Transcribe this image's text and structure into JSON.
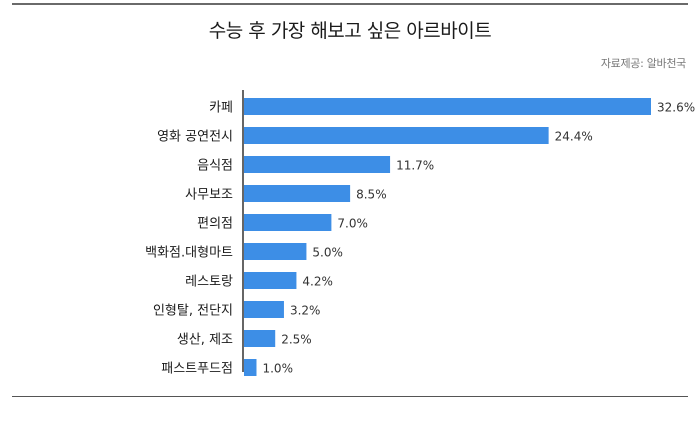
{
  "title": "수능 후 가장 해보고 싶은 아르바이트",
  "source": "자료제공: 알바천국",
  "colors": {
    "bar": "#3d8ee6",
    "axis": "#333333"
  },
  "chart_data": {
    "type": "bar",
    "orientation": "horizontal",
    "title": "수능 후 가장 해보고 싶은 아르바이트",
    "categories": [
      "카페",
      "영화 공연전시",
      "음식점",
      "사무보조",
      "편의점",
      "백화점.대형마트",
      "레스토랑",
      "인형탈, 전단지",
      "생산, 제조",
      "패스트푸드점"
    ],
    "values": [
      32.6,
      24.4,
      11.7,
      8.5,
      7.0,
      5.0,
      4.2,
      3.2,
      2.5,
      1.0
    ],
    "value_labels": [
      "32.6%",
      "24.4%",
      "11.7%",
      "8.5%",
      "7.0%",
      "5.0%",
      "4.2%",
      "3.2%",
      "2.5%",
      "1.0%"
    ],
    "unit": "%",
    "xlim": [
      0,
      32.6
    ],
    "grid": false,
    "legend": "none"
  }
}
